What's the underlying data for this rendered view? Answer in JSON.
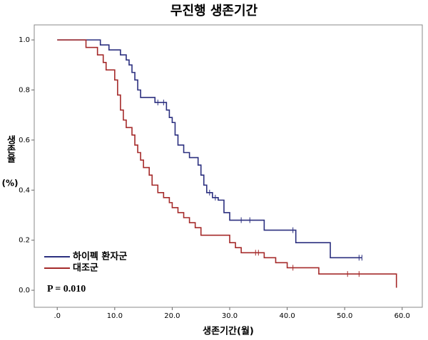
{
  "chart_data": {
    "type": "km",
    "title": "무진행 생존기간",
    "xlabel": "생존기간(월)",
    "ylabel": "생존율",
    "ylabel_unit": "(%)",
    "annotation": "P = 0.010",
    "xlim": [
      -4,
      63.5
    ],
    "ylim": [
      -0.068,
      1.06
    ],
    "xticks": [
      {
        "value": 0,
        "label": ".0"
      },
      {
        "value": 10,
        "label": "10.0"
      },
      {
        "value": 20,
        "label": "20.0"
      },
      {
        "value": 30,
        "label": "30.0"
      },
      {
        "value": 40,
        "label": "40.0"
      },
      {
        "value": 50,
        "label": "50.0"
      },
      {
        "value": 60,
        "label": "60.0"
      }
    ],
    "yticks": [
      {
        "value": 0,
        "label": "0.0"
      },
      {
        "value": 0.2,
        "label": "0.2"
      },
      {
        "value": 0.4,
        "label": "0.4"
      },
      {
        "value": 0.6,
        "label": "0.6"
      },
      {
        "value": 0.8,
        "label": "0.8"
      },
      {
        "value": 1,
        "label": "1.0"
      }
    ],
    "legend": "lower left",
    "series": [
      {
        "name": "하이펙 환자군",
        "color": "#2b2f7f",
        "x": [
          0,
          7.5,
          7.5,
          9,
          9,
          11,
          11,
          12,
          12,
          12.5,
          12.5,
          13,
          13,
          13.5,
          13.5,
          14,
          14,
          14.5,
          14.5,
          17,
          17,
          19,
          19,
          19.5,
          19.5,
          20,
          20,
          20.5,
          20.5,
          21,
          21,
          22,
          22,
          23,
          23,
          24.5,
          24.5,
          25,
          25,
          25.5,
          25.5,
          26,
          26,
          27,
          27,
          28,
          28,
          29,
          29,
          30,
          30,
          36,
          36,
          41.5,
          41.5,
          47.5,
          47.5,
          53
        ],
        "values": [
          1,
          1,
          0.98,
          0.98,
          0.96,
          0.96,
          0.94,
          0.94,
          0.92,
          0.92,
          0.9,
          0.9,
          0.87,
          0.87,
          0.84,
          0.84,
          0.8,
          0.8,
          0.77,
          0.77,
          0.75,
          0.75,
          0.72,
          0.72,
          0.69,
          0.69,
          0.67,
          0.67,
          0.62,
          0.62,
          0.58,
          0.58,
          0.55,
          0.55,
          0.53,
          0.53,
          0.5,
          0.5,
          0.46,
          0.46,
          0.42,
          0.42,
          0.39,
          0.39,
          0.37,
          0.37,
          0.36,
          0.36,
          0.31,
          0.31,
          0.28,
          0.28,
          0.24,
          0.24,
          0.19,
          0.19,
          0.13,
          0.13
        ],
        "censor_x": [
          17.5,
          18.5,
          26.5,
          27.5,
          32,
          33.5,
          41,
          52.5,
          53
        ],
        "censor_y": [
          0.75,
          0.75,
          0.39,
          0.37,
          0.28,
          0.28,
          0.24,
          0.13,
          0.13
        ]
      },
      {
        "name": "대조군",
        "color": "#a52a2a",
        "x": [
          0,
          5,
          5,
          7,
          7,
          8,
          8,
          8.5,
          8.5,
          10,
          10,
          10.5,
          10.5,
          11,
          11,
          11.5,
          11.5,
          12,
          12,
          13,
          13,
          13.5,
          13.5,
          14,
          14,
          14.5,
          14.5,
          15,
          15,
          16,
          16,
          16.5,
          16.5,
          17.5,
          17.5,
          18.5,
          18.5,
          19.5,
          19.5,
          20,
          20,
          21,
          21,
          22,
          22,
          23,
          23,
          24,
          24,
          25,
          25,
          30,
          30,
          31,
          31,
          32,
          32,
          36,
          36,
          38,
          38,
          40,
          40,
          45.5,
          45.5,
          59,
          59
        ],
        "values": [
          1,
          1,
          0.97,
          0.97,
          0.94,
          0.94,
          0.91,
          0.91,
          0.88,
          0.88,
          0.84,
          0.84,
          0.78,
          0.78,
          0.72,
          0.72,
          0.68,
          0.68,
          0.65,
          0.65,
          0.62,
          0.62,
          0.58,
          0.58,
          0.55,
          0.55,
          0.52,
          0.52,
          0.49,
          0.49,
          0.46,
          0.46,
          0.42,
          0.42,
          0.39,
          0.39,
          0.37,
          0.37,
          0.35,
          0.35,
          0.33,
          0.33,
          0.31,
          0.31,
          0.29,
          0.29,
          0.27,
          0.27,
          0.25,
          0.25,
          0.22,
          0.22,
          0.19,
          0.19,
          0.17,
          0.17,
          0.15,
          0.15,
          0.13,
          0.13,
          0.11,
          0.11,
          0.09,
          0.09,
          0.065,
          0.065,
          0.01
        ],
        "censor_x": [
          34.5,
          35,
          41,
          50.5,
          52.5
        ],
        "censor_y": [
          0.15,
          0.15,
          0.09,
          0.065,
          0.065
        ]
      }
    ]
  }
}
